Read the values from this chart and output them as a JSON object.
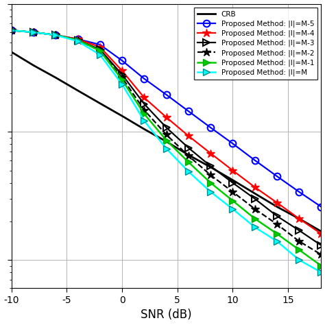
{
  "xlabel": "SNR (dB)",
  "snr": [
    -10,
    -8,
    -6,
    -4,
    -2,
    0,
    2,
    4,
    6,
    8,
    10,
    12,
    14,
    16,
    18
  ],
  "crb": [
    0.42,
    0.33,
    0.265,
    0.21,
    0.167,
    0.133,
    0.105,
    0.084,
    0.066,
    0.053,
    0.042,
    0.033,
    0.026,
    0.021,
    0.0167
  ],
  "blue_circle": [
    0.62,
    0.6,
    0.57,
    0.53,
    0.48,
    0.36,
    0.26,
    0.195,
    0.145,
    0.108,
    0.081,
    0.06,
    0.045,
    0.034,
    0.026
  ],
  "red_star": [
    0.62,
    0.6,
    0.57,
    0.53,
    0.46,
    0.3,
    0.185,
    0.13,
    0.093,
    0.068,
    0.05,
    0.037,
    0.028,
    0.021,
    0.016
  ],
  "black_triangle": [
    0.62,
    0.6,
    0.57,
    0.52,
    0.44,
    0.28,
    0.165,
    0.108,
    0.075,
    0.054,
    0.04,
    0.03,
    0.022,
    0.017,
    0.013
  ],
  "black_dashed_star": [
    0.62,
    0.6,
    0.57,
    0.52,
    0.43,
    0.265,
    0.148,
    0.095,
    0.065,
    0.046,
    0.034,
    0.025,
    0.019,
    0.014,
    0.011
  ],
  "green_triangle": [
    0.62,
    0.6,
    0.57,
    0.52,
    0.43,
    0.255,
    0.138,
    0.086,
    0.058,
    0.04,
    0.029,
    0.021,
    0.016,
    0.012,
    0.009
  ],
  "cyan_triangle": [
    0.62,
    0.6,
    0.57,
    0.51,
    0.4,
    0.235,
    0.122,
    0.074,
    0.049,
    0.034,
    0.025,
    0.018,
    0.014,
    0.01,
    0.008
  ],
  "legend_labels": [
    "CRB",
    "Proposed Method: |I|=M-5",
    "Proposed Method: |I|=M-4",
    "Proposed Method: |I|=M-3",
    "Proposed Method: |I|=M-2",
    "Proposed Method: |I|=M-1",
    "Proposed Method: |I|=M"
  ],
  "xlim": [
    -10,
    18
  ],
  "ylim_log": [
    0.006,
    1.0
  ],
  "xticks": [
    -10,
    -5,
    0,
    5,
    10,
    15
  ],
  "xtick_labels": [
    "-10",
    "-5",
    "0",
    "5",
    "10",
    "15"
  ]
}
